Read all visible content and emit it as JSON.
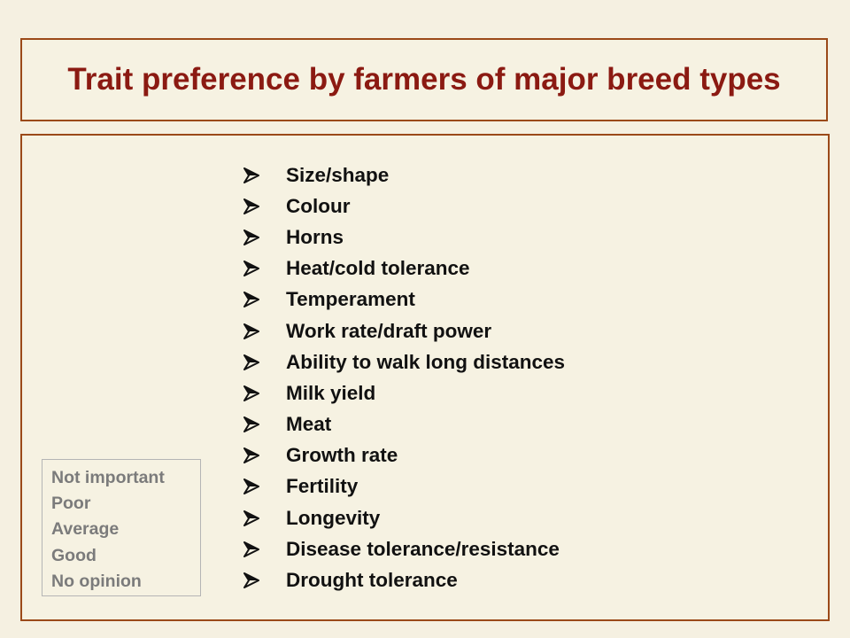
{
  "slide": {
    "title": "Trait preference by farmers of major breed types",
    "bullet_icon": "arrowhead-bullet-icon",
    "traits": [
      "Size/shape",
      "Colour",
      "Horns",
      "Heat/cold tolerance",
      "Temperament",
      "Work rate/draft power",
      "Ability to walk long distances",
      "Milk yield",
      "Meat",
      "Growth rate",
      "Fertility",
      "Longevity",
      "Disease tolerance/resistance",
      "Drought tolerance"
    ],
    "legend": [
      "Not important",
      "Poor",
      "Average",
      "Good",
      "No opinion"
    ]
  },
  "colors": {
    "background": "#f5f0e1",
    "border": "#9b4a19",
    "title": "#8b1a12",
    "legend_text": "#7b7b7b"
  }
}
